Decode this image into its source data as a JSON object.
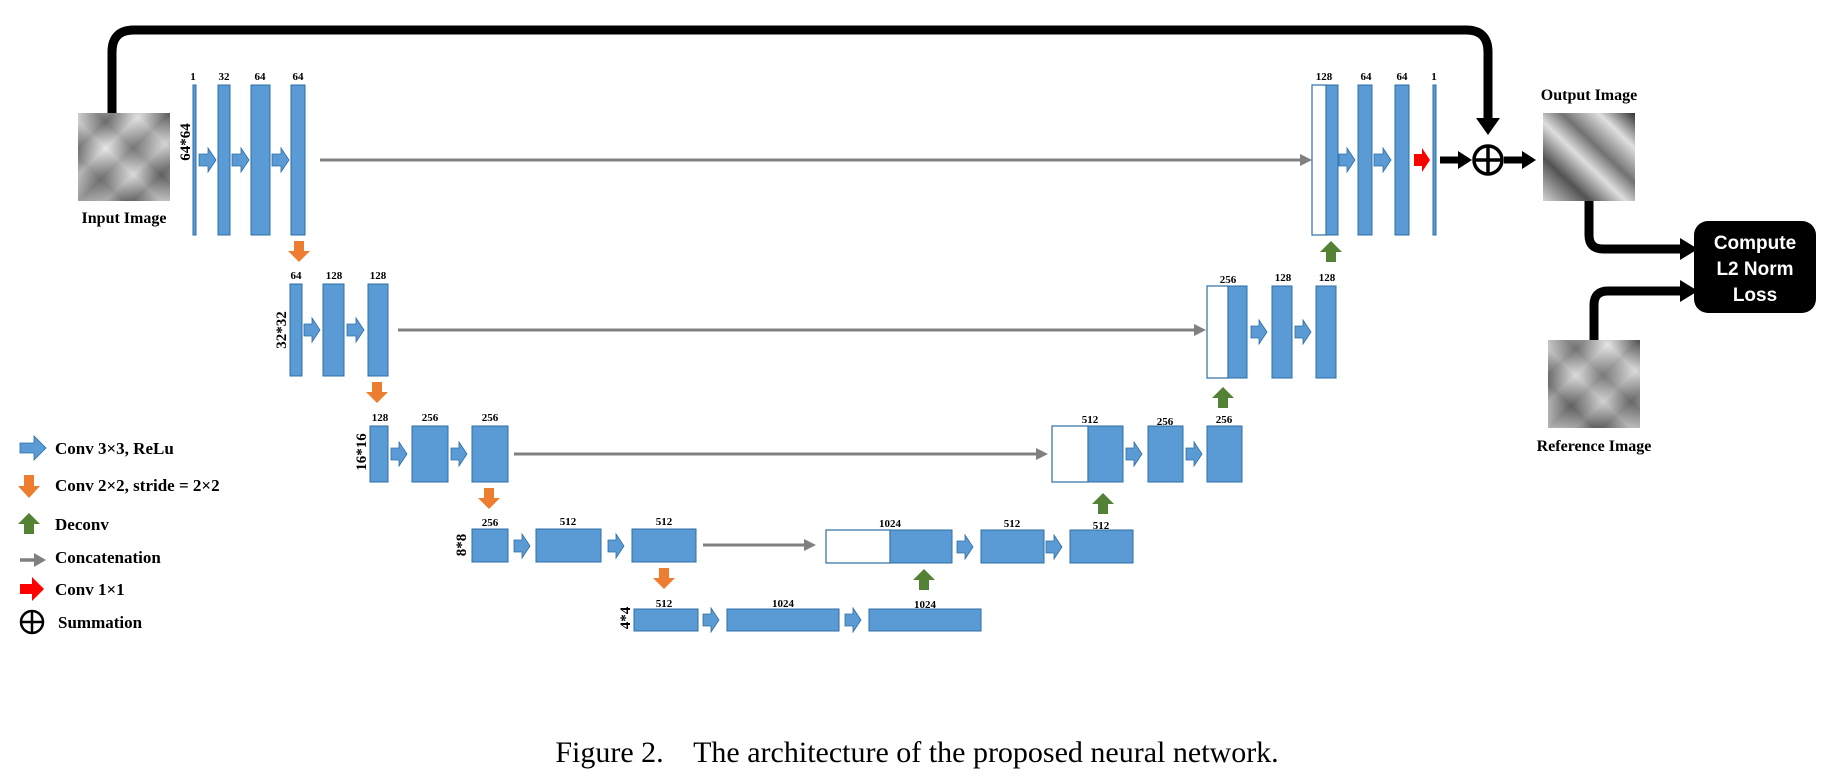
{
  "images": {
    "input": "Input Image",
    "output": "Output Image",
    "reference": "Reference Image"
  },
  "loss_box": {
    "line1": "Compute",
    "line2": "L2 Norm",
    "line3": "Loss"
  },
  "levels": {
    "l1": {
      "size": "64*64",
      "enc": [
        "1",
        "32",
        "64",
        "64"
      ],
      "dec": [
        "128",
        "64",
        "64",
        "1"
      ]
    },
    "l2": {
      "size": "32*32",
      "enc": [
        "64",
        "128",
        "128"
      ],
      "dec": [
        "256",
        "128",
        "128"
      ]
    },
    "l3": {
      "size": "16*16",
      "enc": [
        "128",
        "256",
        "256"
      ],
      "dec": [
        "512",
        "256",
        "256"
      ]
    },
    "l4": {
      "size": "8*8",
      "enc": [
        "256",
        "512",
        "512"
      ],
      "dec": [
        "1024",
        "512",
        "512"
      ]
    },
    "l5": {
      "size": "4*4",
      "enc": [
        "512",
        "1024",
        "1024"
      ]
    }
  },
  "legend": {
    "conv3": "Conv 3×3, ReLu",
    "conv2": "Conv 2×2, stride = 2×2",
    "deconv": "Deconv",
    "concat": "Concatenation",
    "conv1": "Conv 1×1",
    "sum": "Summation"
  },
  "caption": "Figure 2.    The architecture of the proposed neural network.",
  "colors": {
    "block": "#5b9bd5",
    "block_border": "#2e6da4",
    "conv3": "#5b9bd5",
    "conv2": "#ed7d31",
    "deconv": "#548235",
    "concat": "#808080",
    "conv1": "#ff0000",
    "path": "#000000"
  }
}
